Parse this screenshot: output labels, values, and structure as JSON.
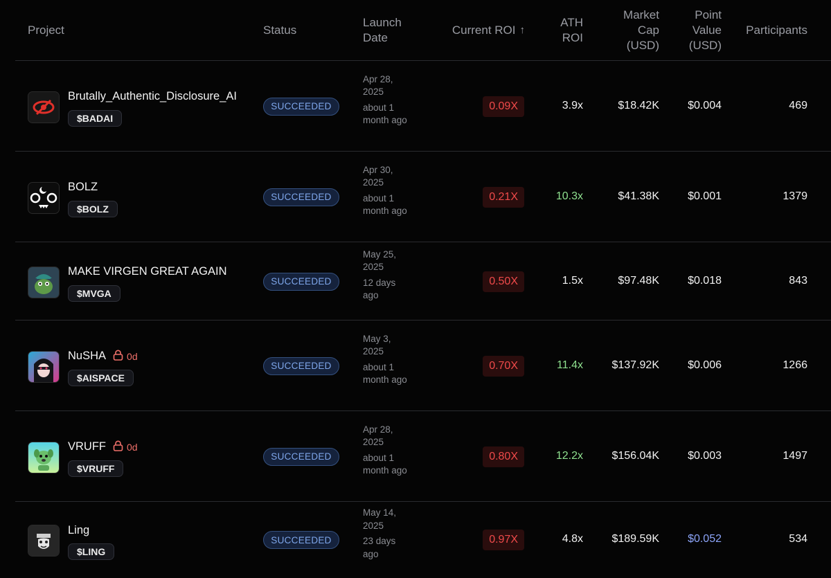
{
  "headers": {
    "project": "Project",
    "status": "Status",
    "launch_date": "Launch Date",
    "current_roi": "Current ROI",
    "current_roi_sort_icon": "arrow-up-icon",
    "ath_roi": "ATH ROI",
    "market_cap": "Market Cap (USD)",
    "point_value": "Point Value (USD)",
    "participants": "Participants"
  },
  "rows": [
    {
      "name": "Brutally_Authentic_Disclosure_AI",
      "ticker": "$BADAI",
      "lock": "",
      "status": "SUCCEEDED",
      "date": "Apr 28, 2025",
      "relative": "about 1 month ago",
      "current_roi": "0.09X",
      "ath_roi": "3.9x",
      "ath_color": "#f2f2f2",
      "market_cap": "$18.42K",
      "point_value": "$0.004",
      "point_color": "#f2f2f2",
      "participants": "469",
      "avatar": "red-eye-logo"
    },
    {
      "name": "BOLZ",
      "ticker": "$BOLZ",
      "lock": "",
      "status": "SUCCEEDED",
      "date": "Apr 30, 2025",
      "relative": "about 1 month ago",
      "current_roi": "0.21X",
      "ath_roi": "10.3x",
      "ath_color": "#8fe08f",
      "market_cap": "$41.38K",
      "point_value": "$0.001",
      "point_color": "#f2f2f2",
      "participants": "1379",
      "avatar": "face-moon-logo"
    },
    {
      "name": "MAKE VIRGEN GREAT AGAIN",
      "ticker": "$MVGA",
      "lock": "",
      "status": "SUCCEEDED",
      "date": "May 25, 2025",
      "relative": "12 days ago",
      "current_roi": "0.50X",
      "ath_roi": "1.5x",
      "ath_color": "#f2f2f2",
      "market_cap": "$97.48K",
      "point_value": "$0.018",
      "point_color": "#f2f2f2",
      "participants": "843",
      "avatar": "frog-cap-logo"
    },
    {
      "name": "NuSHA",
      "ticker": "$AISPACE",
      "lock": "0d",
      "status": "SUCCEEDED",
      "date": "May 3, 2025",
      "relative": "about 1 month ago",
      "current_roi": "0.70X",
      "ath_roi": "11.4x",
      "ath_color": "#8fe08f",
      "market_cap": "$137.92K",
      "point_value": "$0.006",
      "point_color": "#f2f2f2",
      "participants": "1266",
      "avatar": "anime-girl-logo"
    },
    {
      "name": "VRUFF",
      "ticker": "$VRUFF",
      "lock": "0d",
      "status": "SUCCEEDED",
      "date": "Apr 28, 2025",
      "relative": "about 1 month ago",
      "current_roi": "0.80X",
      "ath_roi": "12.2x",
      "ath_color": "#8fe08f",
      "market_cap": "$156.04K",
      "point_value": "$0.003",
      "point_color": "#f2f2f2",
      "participants": "1497",
      "avatar": "green-dog-logo"
    },
    {
      "name": "Ling",
      "ticker": "$LING",
      "lock": "",
      "status": "SUCCEEDED",
      "date": "May 14, 2025",
      "relative": "23 days ago",
      "current_roi": "0.97X",
      "ath_roi": "4.8x",
      "ath_color": "#f2f2f2",
      "market_cap": "$189.59K",
      "point_value": "$0.052",
      "point_color": "#8ca4f8",
      "participants": "534",
      "avatar": "mask-face-logo"
    }
  ]
}
